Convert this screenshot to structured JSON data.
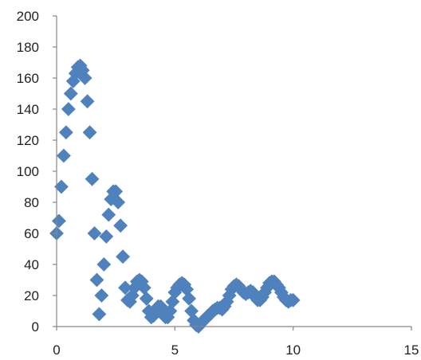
{
  "chart_data": {
    "type": "scatter",
    "title": "",
    "xlabel": "",
    "ylabel": "",
    "xlim": [
      0,
      15
    ],
    "ylim": [
      0,
      200
    ],
    "x_ticks": [
      0,
      5,
      10,
      15
    ],
    "y_ticks": [
      0,
      20,
      40,
      60,
      80,
      100,
      120,
      140,
      160,
      180,
      200
    ],
    "x_tick_labels": [
      "0",
      "5",
      "10",
      "15"
    ],
    "y_tick_labels": [
      "0",
      "20",
      "40",
      "60",
      "80",
      "100",
      "120",
      "140",
      "160",
      "180",
      "200"
    ],
    "grid": false,
    "legend": "none",
    "marker": "diamond",
    "series": [
      {
        "color": "#4f81bd",
        "points": [
          [
            0,
            60
          ],
          [
            0.1,
            68
          ],
          [
            0.2,
            90
          ],
          [
            0.3,
            110
          ],
          [
            0.4,
            125
          ],
          [
            0.5,
            140
          ],
          [
            0.6,
            150
          ],
          [
            0.7,
            158
          ],
          [
            0.8,
            163
          ],
          [
            0.9,
            167
          ],
          [
            1.0,
            168
          ],
          [
            1.1,
            165
          ],
          [
            1.2,
            160
          ],
          [
            1.3,
            145
          ],
          [
            1.4,
            125
          ],
          [
            1.5,
            95
          ],
          [
            1.6,
            60
          ],
          [
            1.7,
            30
          ],
          [
            1.8,
            8
          ],
          [
            1.9,
            20
          ],
          [
            2.0,
            40
          ],
          [
            2.1,
            58
          ],
          [
            2.2,
            72
          ],
          [
            2.3,
            82
          ],
          [
            2.4,
            87
          ],
          [
            2.5,
            87
          ],
          [
            2.6,
            80
          ],
          [
            2.7,
            65
          ],
          [
            2.8,
            45
          ],
          [
            2.9,
            25
          ],
          [
            3.0,
            17
          ],
          [
            3.1,
            16
          ],
          [
            3.2,
            20
          ],
          [
            3.3,
            25
          ],
          [
            3.4,
            29
          ],
          [
            3.5,
            30
          ],
          [
            3.6,
            29
          ],
          [
            3.7,
            25
          ],
          [
            3.8,
            18
          ],
          [
            3.9,
            10
          ],
          [
            4.0,
            6
          ],
          [
            4.1,
            7
          ],
          [
            4.2,
            10
          ],
          [
            4.3,
            13
          ],
          [
            4.4,
            13
          ],
          [
            4.5,
            10
          ],
          [
            4.6,
            6
          ],
          [
            4.7,
            6
          ],
          [
            4.8,
            10
          ],
          [
            4.9,
            16
          ],
          [
            5.0,
            22
          ],
          [
            5.1,
            25
          ],
          [
            5.2,
            27
          ],
          [
            5.3,
            28
          ],
          [
            5.4,
            27
          ],
          [
            5.5,
            24
          ],
          [
            5.6,
            18
          ],
          [
            5.7,
            10
          ],
          [
            5.8,
            4
          ],
          [
            5.9,
            1
          ],
          [
            6.0,
            0
          ],
          [
            6.1,
            2
          ],
          [
            6.2,
            4
          ],
          [
            6.3,
            5
          ],
          [
            6.4,
            7
          ],
          [
            6.5,
            8
          ],
          [
            6.6,
            10
          ],
          [
            6.7,
            11
          ],
          [
            6.8,
            12
          ],
          [
            6.9,
            12
          ],
          [
            7.0,
            11
          ],
          [
            7.1,
            13
          ],
          [
            7.2,
            16
          ],
          [
            7.3,
            20
          ],
          [
            7.4,
            24
          ],
          [
            7.5,
            26
          ],
          [
            7.6,
            27
          ],
          [
            7.7,
            26
          ],
          [
            7.8,
            24
          ],
          [
            7.9,
            22
          ],
          [
            8.0,
            21
          ],
          [
            8.1,
            22
          ],
          [
            8.2,
            23
          ],
          [
            8.3,
            22
          ],
          [
            8.4,
            19
          ],
          [
            8.5,
            17
          ],
          [
            8.6,
            17
          ],
          [
            8.7,
            19
          ],
          [
            8.8,
            22
          ],
          [
            8.9,
            25
          ],
          [
            9.0,
            28
          ],
          [
            9.1,
            29
          ],
          [
            9.2,
            29
          ],
          [
            9.3,
            27
          ],
          [
            9.4,
            25
          ],
          [
            9.5,
            22
          ],
          [
            9.6,
            19
          ],
          [
            9.7,
            17
          ],
          [
            9.8,
            16
          ],
          [
            9.9,
            17
          ],
          [
            10.0,
            17
          ]
        ]
      }
    ]
  }
}
